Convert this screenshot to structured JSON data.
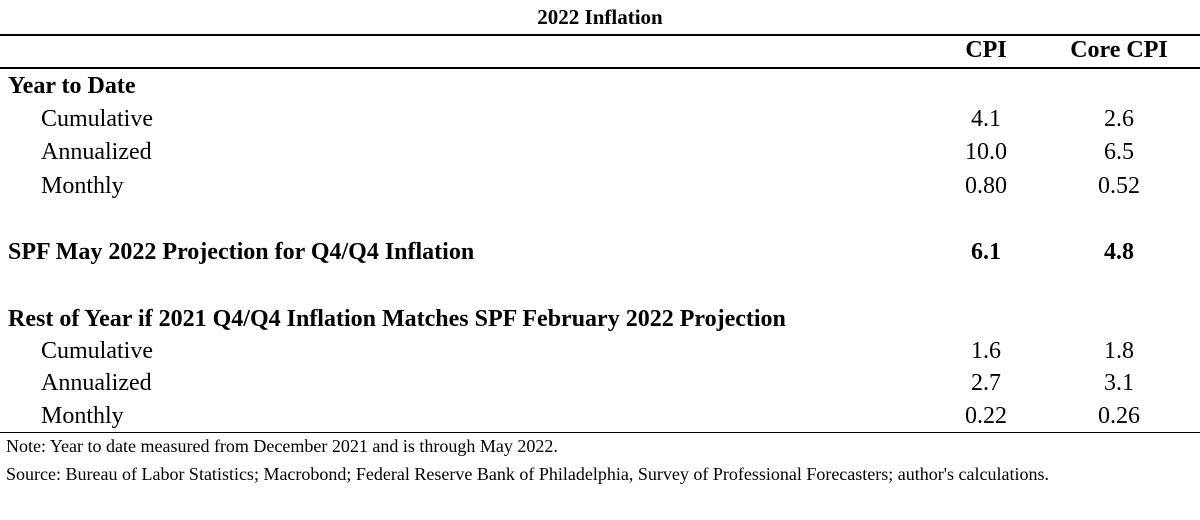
{
  "table": {
    "title": "2022 Inflation",
    "headers": {
      "cpi": "CPI",
      "core": "Core CPI"
    },
    "sections": [
      {
        "heading": "Year to Date",
        "rows": [
          {
            "label": "Cumulative",
            "cpi": "4.1",
            "core": "2.6"
          },
          {
            "label": "Annualized",
            "cpi": "10.0",
            "core": "6.5"
          },
          {
            "label": "Monthly",
            "cpi": "0.80",
            "core": "0.52"
          }
        ]
      },
      {
        "heading": "SPF May 2022 Projection for Q4/Q4 Inflation",
        "cpi": "6.1",
        "core": "4.8"
      },
      {
        "heading": "Rest of Year if 2021 Q4/Q4 Inflation Matches SPF February 2022 Projection",
        "rows": [
          {
            "label": "Cumulative",
            "cpi": "1.6",
            "core": "1.8"
          },
          {
            "label": "Annualized",
            "cpi": "2.7",
            "core": "3.1"
          },
          {
            "label": "Monthly",
            "cpi": "0.22",
            "core": "0.26"
          }
        ]
      }
    ],
    "note": "Note: Year to date measured from December 2021 and is through May 2022.",
    "source": "Source: Bureau of Labor Statistics; Macrobond; Federal Reserve Bank of Philadelphia, Survey of Professional Forecasters; author's calculations."
  }
}
